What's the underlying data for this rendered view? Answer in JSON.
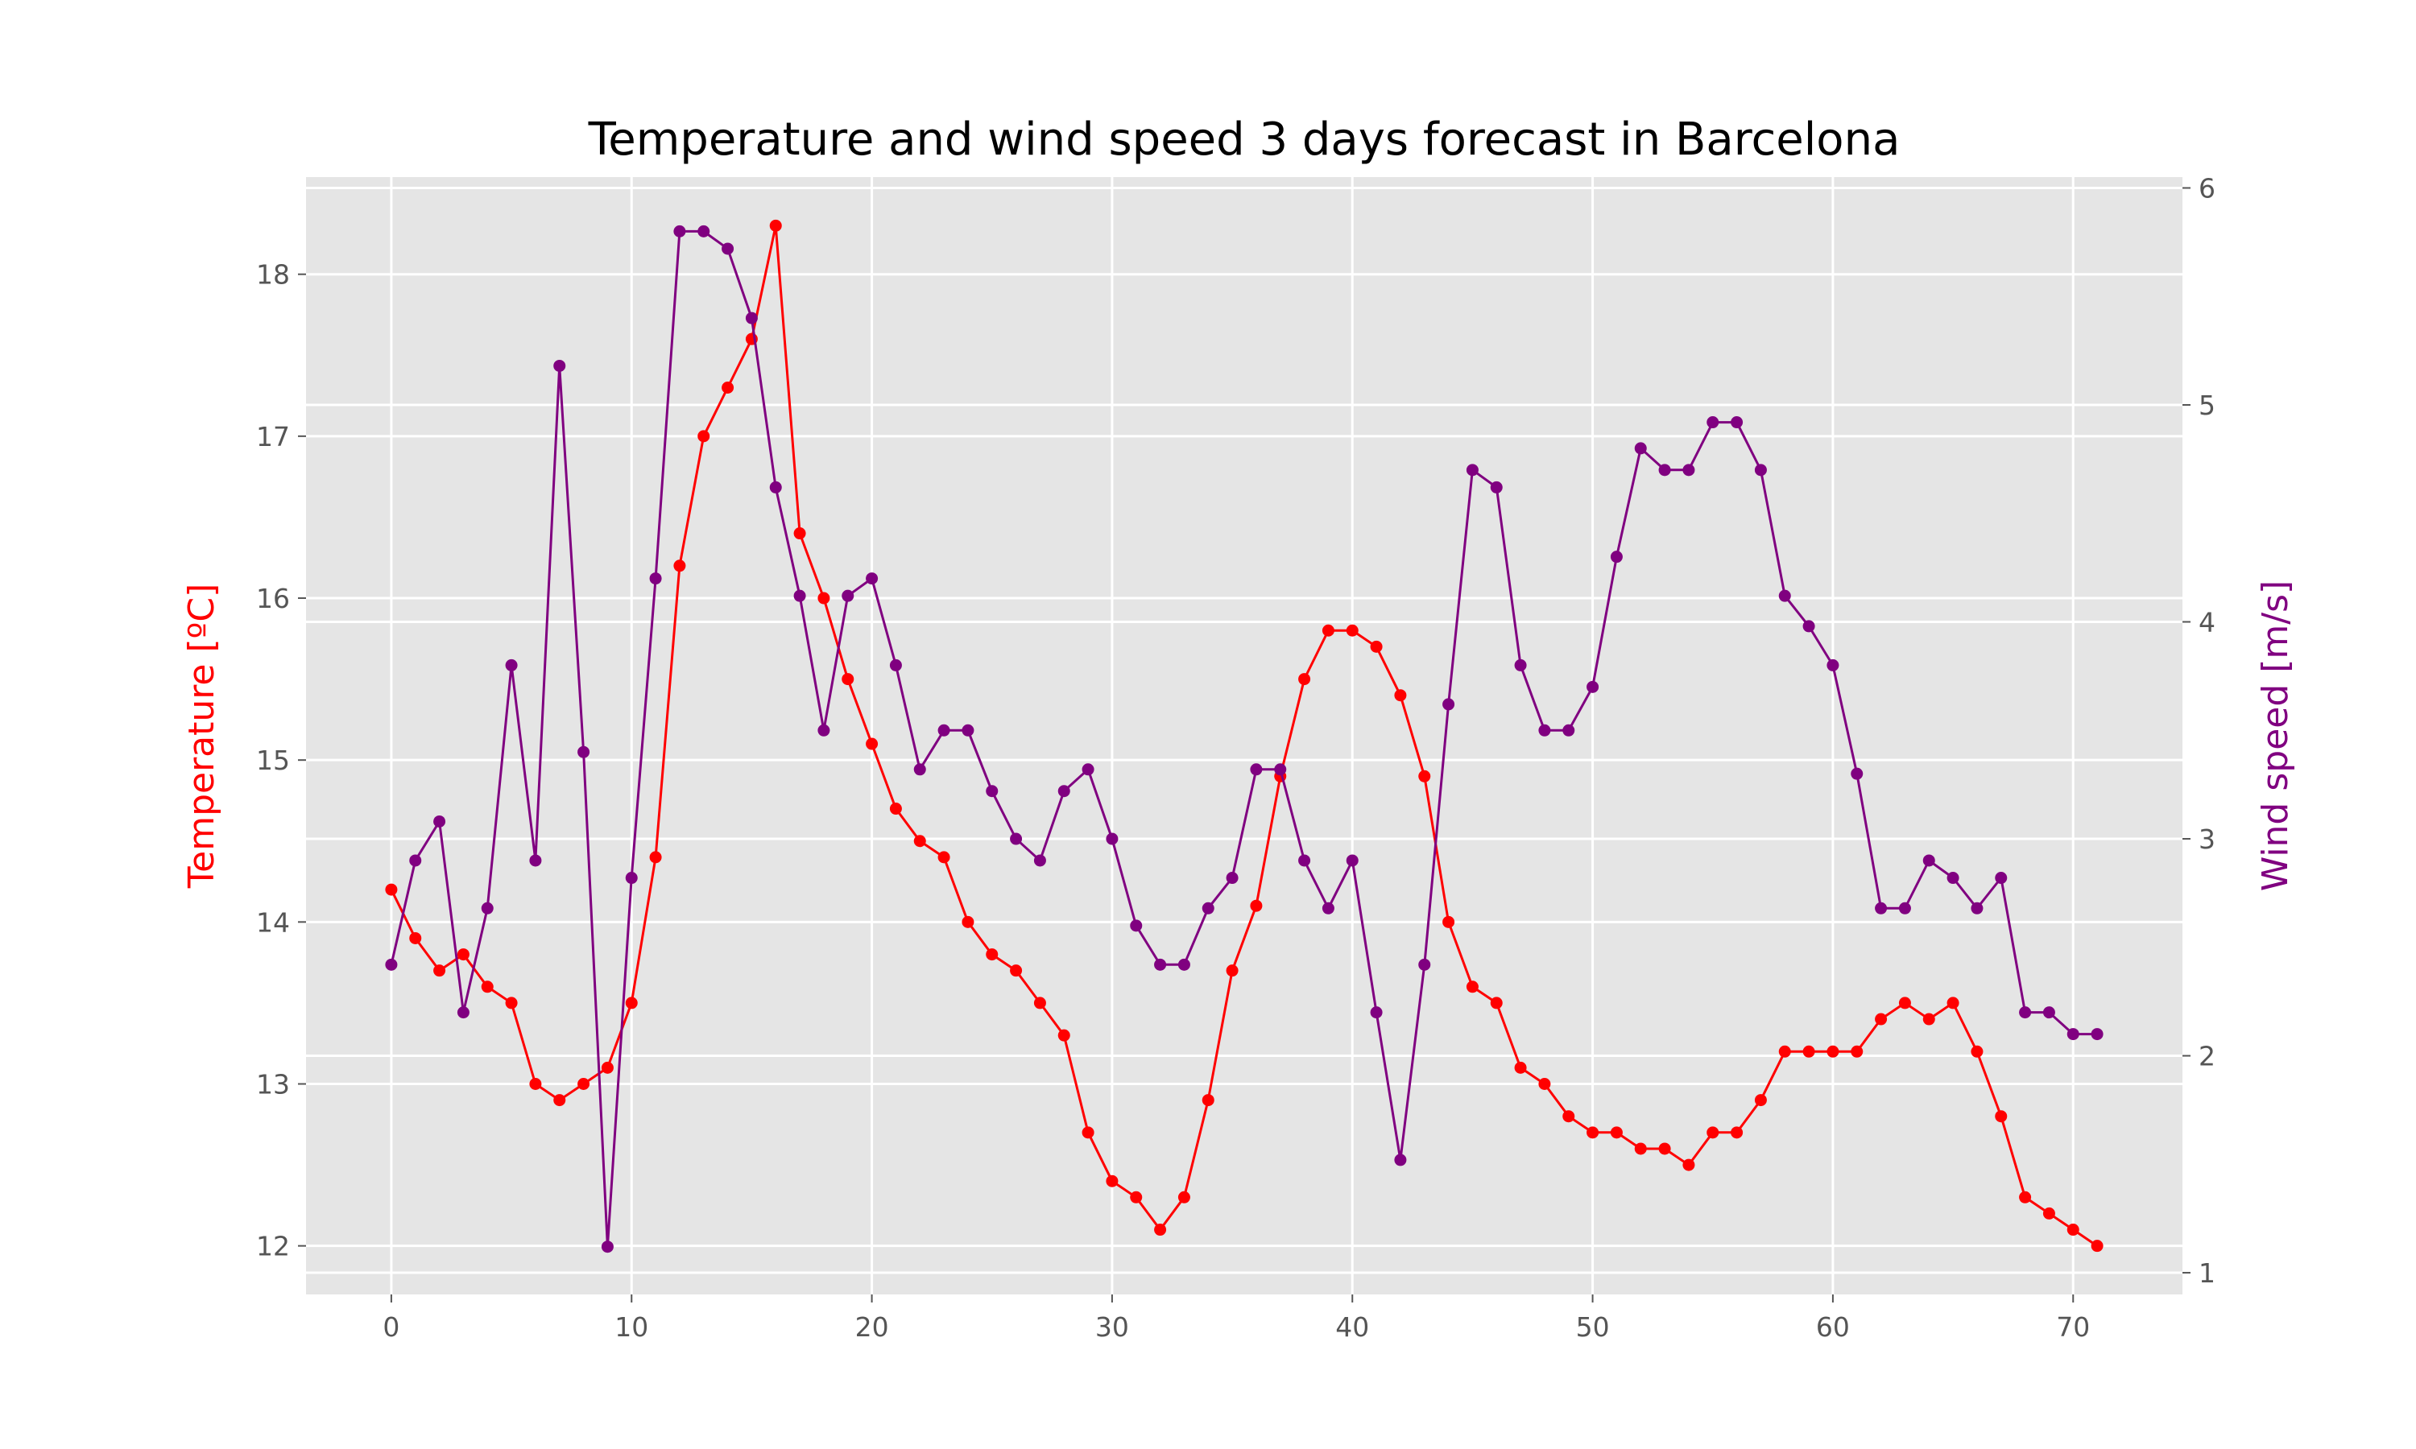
{
  "chart_data": {
    "type": "line",
    "title": "Temperature and wind speed 3 days forecast in Barcelona",
    "xlabel": "",
    "x": [
      0,
      1,
      2,
      3,
      4,
      5,
      6,
      7,
      8,
      9,
      10,
      11,
      12,
      13,
      14,
      15,
      16,
      17,
      18,
      19,
      20,
      21,
      22,
      23,
      24,
      25,
      26,
      27,
      28,
      29,
      30,
      31,
      32,
      33,
      34,
      35,
      36,
      37,
      38,
      39,
      40,
      41,
      42,
      43,
      44,
      45,
      46,
      47,
      48,
      49,
      50,
      51,
      52,
      53,
      54,
      55,
      56,
      57,
      58,
      59,
      60,
      61,
      62,
      63,
      64,
      65,
      66,
      67,
      68,
      69,
      70,
      71
    ],
    "xlim": [
      -3.55,
      74.55
    ],
    "xticks": [
      0,
      10,
      20,
      30,
      40,
      50,
      60,
      70
    ],
    "grid": true,
    "background": "#e5e5e5",
    "grid_color": "#ffffff",
    "series": [
      {
        "name": "Temperature",
        "axis": "left",
        "color": "#ff0000",
        "ylabel": "Temperature [ºC]",
        "ylim": [
          11.7,
          18.6
        ],
        "yticks": [
          12,
          13,
          14,
          15,
          16,
          17,
          18
        ],
        "values": [
          14.2,
          13.9,
          13.7,
          13.8,
          13.6,
          13.5,
          13.0,
          12.9,
          13.0,
          13.1,
          13.5,
          14.4,
          16.2,
          17.0,
          17.3,
          17.6,
          18.3,
          16.4,
          16.0,
          15.5,
          15.1,
          14.7,
          14.5,
          14.4,
          14.0,
          13.8,
          13.7,
          13.5,
          13.3,
          12.7,
          12.4,
          12.3,
          12.1,
          12.3,
          12.9,
          13.7,
          14.1,
          14.9,
          15.5,
          15.8,
          15.8,
          15.7,
          15.4,
          14.9,
          14.0,
          13.6,
          13.5,
          13.1,
          13.0,
          12.8,
          12.7,
          12.7,
          12.6,
          12.6,
          12.5,
          12.7,
          12.7,
          12.9,
          13.2,
          13.2,
          13.2,
          13.2,
          13.4,
          13.5,
          13.4,
          13.5,
          13.2,
          12.8,
          12.3,
          12.2,
          12.1,
          12.0
        ]
      },
      {
        "name": "Wind speed",
        "axis": "right",
        "color": "#800080",
        "ylabel": "Wind speed [m/s]",
        "ylim": [
          0.9,
          6.05
        ],
        "yticks": [
          1,
          2,
          3,
          4,
          5,
          6
        ],
        "values": [
          2.42,
          2.9,
          3.08,
          2.2,
          2.68,
          3.8,
          2.9,
          5.18,
          3.4,
          1.12,
          2.82,
          4.2,
          5.8,
          5.8,
          5.72,
          5.4,
          4.62,
          4.12,
          3.5,
          4.12,
          4.2,
          3.8,
          3.32,
          3.5,
          3.5,
          3.22,
          3.0,
          2.9,
          3.22,
          3.32,
          3.0,
          2.6,
          2.42,
          2.42,
          2.68,
          2.82,
          3.32,
          3.32,
          2.9,
          2.68,
          2.9,
          2.2,
          1.52,
          2.42,
          3.62,
          4.7,
          4.62,
          3.8,
          3.5,
          3.5,
          3.7,
          4.3,
          4.8,
          4.7,
          4.7,
          4.92,
          4.92,
          4.7,
          4.12,
          3.98,
          3.8,
          3.3,
          2.68,
          2.68,
          2.9,
          2.82,
          2.68,
          2.82,
          2.2,
          2.2,
          2.1,
          2.1
        ]
      }
    ]
  }
}
